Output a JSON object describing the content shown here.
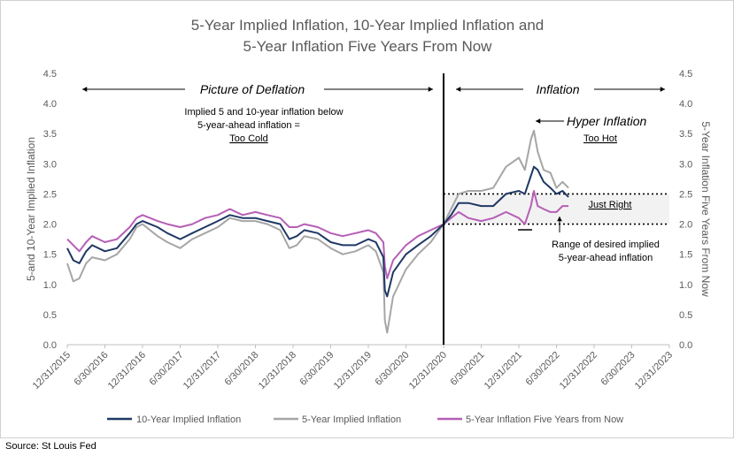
{
  "title_line1": "5-Year Implied Inflation, 10-Year Implied Inflation and",
  "title_line2": "5-Year Inflation Five Years From Now",
  "source": "Source: St Louis Fed",
  "annotations": {
    "deflation_label": "Picture of Deflation",
    "inflation_label": "Inflation",
    "cold_line1": "Implied 5 and 10-year inflation below",
    "cold_line2": "5-year-ahead inflation =",
    "cold_line3": "Too Cold",
    "hyper_label": "Hyper Inflation",
    "too_hot": "Too Hot",
    "just_right": "Just Right",
    "range_line1": "Range of desired implied",
    "range_line2": "5-year-ahead inflation"
  },
  "colors": {
    "ten_year": "#1f3864",
    "five_year": "#a6a6a6",
    "five_five": "#b55fb5",
    "band_fill": "#f2f2f2"
  },
  "chart_data": {
    "type": "line",
    "title": "5-Year Implied Inflation, 10-Year Implied Inflation and 5-Year Inflation Five Years From Now",
    "ylabel_left": "5-and 10-Year Implied Inflation",
    "ylabel_right": "5-Year Inflation Five Years From Now",
    "ylim": [
      0.0,
      4.5
    ],
    "y_ticks": [
      "0.0",
      "0.5",
      "1.0",
      "1.5",
      "2.0",
      "2.5",
      "3.0",
      "3.5",
      "4.0",
      "4.5"
    ],
    "x_ticks": [
      "12/31/2015",
      "6/30/2016",
      "12/31/2016",
      "6/30/2017",
      "12/31/2017",
      "6/30/2018",
      "12/31/2018",
      "6/30/2019",
      "12/31/2019",
      "6/30/2020",
      "12/31/2020",
      "6/30/2021",
      "12/31/2021",
      "6/30/2022",
      "12/31/2022",
      "6/30/2023",
      "12/31/2023"
    ],
    "x_domain": [
      2016.0,
      2024.0
    ],
    "divider_x": 2021.0,
    "reference_lines": [
      2.0,
      2.5
    ],
    "grid": false,
    "legend_position": "bottom",
    "series": [
      {
        "name": "10-Year Implied Inflation",
        "x": [
          2016.0,
          2016.08,
          2016.16,
          2016.25,
          2016.33,
          2016.5,
          2016.66,
          2016.83,
          2016.92,
          2017.0,
          2017.1,
          2017.2,
          2017.33,
          2017.5,
          2017.66,
          2017.83,
          2018.0,
          2018.16,
          2018.33,
          2018.5,
          2018.66,
          2018.83,
          2018.95,
          2019.05,
          2019.15,
          2019.33,
          2019.5,
          2019.66,
          2019.83,
          2020.0,
          2020.1,
          2020.2,
          2020.22,
          2020.25,
          2020.33,
          2020.5,
          2020.66,
          2020.83,
          2021.0,
          2021.1,
          2021.2,
          2021.33,
          2021.5,
          2021.66,
          2021.83,
          2022.0,
          2022.08,
          2022.16,
          2022.2,
          2022.25,
          2022.33,
          2022.42,
          2022.5,
          2022.58,
          2022.66
        ],
        "values": [
          1.6,
          1.4,
          1.35,
          1.55,
          1.65,
          1.55,
          1.6,
          1.85,
          2.0,
          2.05,
          2.0,
          1.95,
          1.85,
          1.75,
          1.85,
          1.95,
          2.05,
          2.15,
          2.1,
          2.1,
          2.05,
          2.0,
          1.75,
          1.8,
          1.9,
          1.85,
          1.7,
          1.65,
          1.65,
          1.75,
          1.7,
          1.45,
          0.9,
          0.8,
          1.2,
          1.5,
          1.65,
          1.8,
          2.0,
          2.15,
          2.35,
          2.35,
          2.3,
          2.3,
          2.5,
          2.55,
          2.5,
          2.8,
          2.95,
          2.9,
          2.7,
          2.6,
          2.5,
          2.55,
          2.45
        ]
      },
      {
        "name": "5-Year Implied Inflation",
        "x": [
          2016.0,
          2016.08,
          2016.16,
          2016.25,
          2016.33,
          2016.5,
          2016.66,
          2016.83,
          2016.92,
          2017.0,
          2017.1,
          2017.2,
          2017.33,
          2017.5,
          2017.66,
          2017.83,
          2018.0,
          2018.16,
          2018.33,
          2018.5,
          2018.66,
          2018.83,
          2018.95,
          2019.05,
          2019.15,
          2019.33,
          2019.5,
          2019.66,
          2019.83,
          2020.0,
          2020.1,
          2020.2,
          2020.22,
          2020.25,
          2020.33,
          2020.5,
          2020.66,
          2020.83,
          2021.0,
          2021.1,
          2021.2,
          2021.33,
          2021.5,
          2021.66,
          2021.83,
          2022.0,
          2022.08,
          2022.16,
          2022.2,
          2022.25,
          2022.33,
          2022.42,
          2022.5,
          2022.58,
          2022.66
        ],
        "values": [
          1.35,
          1.05,
          1.1,
          1.35,
          1.45,
          1.4,
          1.5,
          1.75,
          1.95,
          2.0,
          1.9,
          1.8,
          1.7,
          1.6,
          1.75,
          1.85,
          1.95,
          2.1,
          2.05,
          2.05,
          2.0,
          1.9,
          1.6,
          1.65,
          1.8,
          1.75,
          1.6,
          1.5,
          1.55,
          1.65,
          1.55,
          1.2,
          0.4,
          0.2,
          0.8,
          1.25,
          1.5,
          1.7,
          2.0,
          2.25,
          2.5,
          2.55,
          2.55,
          2.6,
          2.95,
          3.1,
          2.9,
          3.4,
          3.55,
          3.2,
          2.9,
          2.85,
          2.6,
          2.7,
          2.6
        ]
      },
      {
        "name": "5-Year Inflation Five Years from Now",
        "x": [
          2016.0,
          2016.08,
          2016.16,
          2016.25,
          2016.33,
          2016.5,
          2016.66,
          2016.83,
          2016.92,
          2017.0,
          2017.1,
          2017.2,
          2017.33,
          2017.5,
          2017.66,
          2017.83,
          2018.0,
          2018.16,
          2018.33,
          2018.5,
          2018.66,
          2018.83,
          2018.95,
          2019.05,
          2019.15,
          2019.33,
          2019.5,
          2019.66,
          2019.83,
          2020.0,
          2020.1,
          2020.2,
          2020.22,
          2020.25,
          2020.33,
          2020.5,
          2020.66,
          2020.83,
          2021.0,
          2021.1,
          2021.2,
          2021.33,
          2021.5,
          2021.66,
          2021.83,
          2022.0,
          2022.08,
          2022.16,
          2022.2,
          2022.25,
          2022.33,
          2022.42,
          2022.5,
          2022.58,
          2022.66
        ],
        "values": [
          1.75,
          1.65,
          1.55,
          1.7,
          1.8,
          1.7,
          1.75,
          1.95,
          2.1,
          2.15,
          2.1,
          2.05,
          2.0,
          1.95,
          2.0,
          2.1,
          2.15,
          2.25,
          2.15,
          2.2,
          2.15,
          2.1,
          1.95,
          1.95,
          2.0,
          1.95,
          1.85,
          1.8,
          1.85,
          1.9,
          1.85,
          1.7,
          1.3,
          1.1,
          1.4,
          1.65,
          1.8,
          1.9,
          2.0,
          2.1,
          2.2,
          2.1,
          2.05,
          2.1,
          2.2,
          2.1,
          2.0,
          2.3,
          2.55,
          2.3,
          2.25,
          2.2,
          2.2,
          2.3,
          2.3
        ]
      }
    ]
  }
}
